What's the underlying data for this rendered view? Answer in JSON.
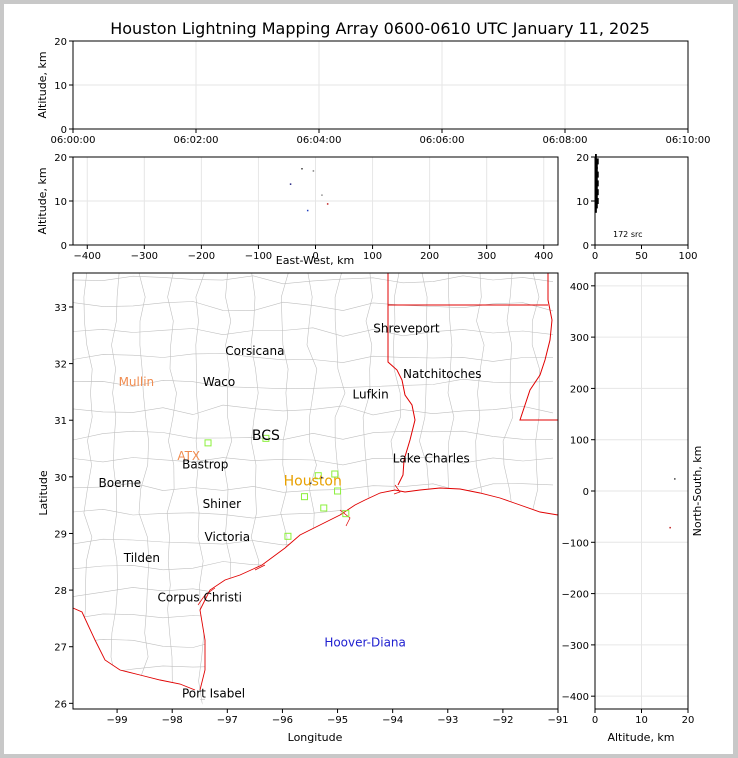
{
  "title": "Houston Lightning Mapping Array 0600-0610 UTC January 11, 2025",
  "colors": {
    "frame": "#c8c8c8",
    "state_line": "#e00000",
    "county_line": "#c0c0c0",
    "grid": "#e6e6e6",
    "station": "#8cf03c",
    "label_city": "#000000",
    "label_orange": "#f08c50",
    "label_houston": "#e8a000",
    "label_blue": "#2020d0"
  },
  "chart_data": [
    {
      "id": "time_altitude",
      "type": "scatter",
      "xlabel": "",
      "ylabel": "Altitude, km",
      "xticks": [
        "06:00:00",
        "06:02:00",
        "06:04:00",
        "06:06:00",
        "06:08:00",
        "06:10:00"
      ],
      "xlim_minutes": [
        0,
        10
      ],
      "ylim": [
        0,
        20
      ],
      "yticks": [
        0,
        10,
        20
      ],
      "grid": true,
      "points": []
    },
    {
      "id": "east_west_altitude",
      "type": "scatter",
      "xlabel": "East-West, km",
      "ylabel": "Altitude, km",
      "xlim": [
        -425,
        425
      ],
      "xticks": [
        -400,
        -300,
        -200,
        -100,
        0,
        100,
        200,
        300,
        400
      ],
      "ylim": [
        0,
        20
      ],
      "yticks": [
        0,
        10,
        20
      ],
      "grid": true,
      "points": [
        {
          "x": -45,
          "y": 14,
          "color": "#202080"
        },
        {
          "x": -25,
          "y": 17.5,
          "color": "#404040"
        },
        {
          "x": -15,
          "y": 8,
          "color": "#2040c0"
        },
        {
          "x": 10,
          "y": 11.5,
          "color": "#909090"
        },
        {
          "x": 20,
          "y": 9.5,
          "color": "#c02020"
        },
        {
          "x": -5,
          "y": 17,
          "color": "#808080"
        }
      ]
    },
    {
      "id": "altitude_histogram",
      "type": "bar",
      "xlabel": "",
      "ylabel": "",
      "xlim": [
        0,
        100
      ],
      "xticks": [
        0,
        50,
        100
      ],
      "ylim": [
        0,
        20
      ],
      "yticks": [
        0,
        10,
        20
      ],
      "annotation": "172 src",
      "bins": [
        {
          "alt": 8,
          "count": 2
        },
        {
          "alt": 9,
          "count": 3
        },
        {
          "alt": 10,
          "count": 4
        },
        {
          "alt": 11,
          "count": 3
        },
        {
          "alt": 12,
          "count": 4
        },
        {
          "alt": 13,
          "count": 3
        },
        {
          "alt": 14,
          "count": 4
        },
        {
          "alt": 15,
          "count": 3
        },
        {
          "alt": 16,
          "count": 4
        },
        {
          "alt": 17,
          "count": 3
        },
        {
          "alt": 18,
          "count": 3
        },
        {
          "alt": 19,
          "count": 4
        },
        {
          "alt": 20,
          "count": 2
        }
      ]
    },
    {
      "id": "plan_view",
      "type": "scatter",
      "xlabel": "Longitude",
      "ylabel": "Latitude",
      "xlim": [
        -99.8,
        -91
      ],
      "xticks": [
        -99,
        -98,
        -97,
        -96,
        -95,
        -94,
        -93,
        -92,
        -91
      ],
      "ylim": [
        25.9,
        33.6
      ],
      "yticks": [
        26,
        27,
        28,
        29,
        30,
        31,
        32,
        33
      ],
      "cities": [
        {
          "name": "Shreveport",
          "lon": -93.75,
          "lat": 32.55,
          "color": "#000000"
        },
        {
          "name": "Corsicana",
          "lon": -96.5,
          "lat": 32.15,
          "color": "#000000"
        },
        {
          "name": "Natchitoches",
          "lon": -93.1,
          "lat": 31.75,
          "color": "#000000"
        },
        {
          "name": "Mullin",
          "lon": -98.65,
          "lat": 31.6,
          "color": "#f08c50"
        },
        {
          "name": "Waco",
          "lon": -97.15,
          "lat": 31.6,
          "color": "#000000"
        },
        {
          "name": "Lufkin",
          "lon": -94.4,
          "lat": 31.38,
          "color": "#000000"
        },
        {
          "name": "BCS",
          "lon": -96.3,
          "lat": 30.65,
          "color": "#000000"
        },
        {
          "name": "ATX",
          "lon": -97.7,
          "lat": 30.3,
          "color": "#f08c50"
        },
        {
          "name": "Lake Charles",
          "lon": -93.3,
          "lat": 30.25,
          "color": "#000000"
        },
        {
          "name": "Bastrop",
          "lon": -97.4,
          "lat": 30.15,
          "color": "#000000"
        },
        {
          "name": "Houston",
          "lon": -95.45,
          "lat": 29.85,
          "color": "#e8a000"
        },
        {
          "name": "Boerne",
          "lon": -98.95,
          "lat": 29.82,
          "color": "#000000"
        },
        {
          "name": "Shiner",
          "lon": -97.1,
          "lat": 29.45,
          "color": "#000000"
        },
        {
          "name": "Victoria",
          "lon": -97.0,
          "lat": 28.87,
          "color": "#000000"
        },
        {
          "name": "Tilden",
          "lon": -98.55,
          "lat": 28.5,
          "color": "#000000"
        },
        {
          "name": "Corpus Christi",
          "lon": -97.5,
          "lat": 27.8,
          "color": "#000000"
        },
        {
          "name": "Hoover-Diana",
          "lon": -94.5,
          "lat": 27.0,
          "color": "#2020d0"
        },
        {
          "name": "Port Isabel",
          "lon": -97.25,
          "lat": 26.1,
          "color": "#000000"
        }
      ],
      "stations": [
        {
          "lon": -97.35,
          "lat": 30.6
        },
        {
          "lon": -96.3,
          "lat": 30.68
        },
        {
          "lon": -95.35,
          "lat": 30.02
        },
        {
          "lon": -95.05,
          "lat": 30.05
        },
        {
          "lon": -95.6,
          "lat": 29.65
        },
        {
          "lon": -95.25,
          "lat": 29.45
        },
        {
          "lon": -94.85,
          "lat": 29.35
        },
        {
          "lon": -95.9,
          "lat": 28.95
        },
        {
          "lon": -95.0,
          "lat": 29.75
        }
      ],
      "points": [
        {
          "lon": -95.3,
          "lat": 30.0,
          "color": "#202060"
        },
        {
          "lon": -95.5,
          "lat": 29.9,
          "color": "#404040"
        }
      ]
    },
    {
      "id": "altitude_north_south",
      "type": "scatter",
      "xlabel": "Altitude, km",
      "ylabel": "North-South, km",
      "xlim": [
        0,
        20
      ],
      "xticks": [
        0,
        10,
        20
      ],
      "ylim": [
        -425,
        425
      ],
      "yticks": [
        -400,
        -300,
        -200,
        -100,
        0,
        100,
        200,
        300,
        400
      ],
      "grid": true,
      "points": [
        {
          "x": 16,
          "y": -70,
          "color": "#c02020"
        },
        {
          "x": 17,
          "y": 25,
          "color": "#404040"
        }
      ]
    }
  ]
}
